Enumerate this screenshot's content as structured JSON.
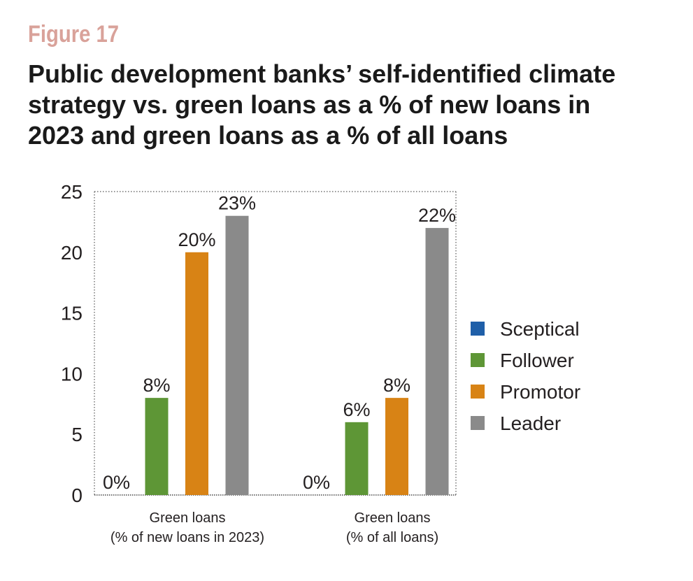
{
  "figure_label": "Figure 17",
  "title_lines": [
    "Public development banks’ self-identified climate",
    "strategy vs. green loans as a % of new loans in",
    "2023 and green loans as a % of all loans"
  ],
  "chart_data": {
    "type": "bar",
    "categories": [
      [
        "Green loans",
        "(% of new loans in 2023)"
      ],
      [
        "Green loans",
        "(% of all loans)"
      ]
    ],
    "series": [
      {
        "name": "Sceptical",
        "color": "#1f5fa8",
        "values": [
          0,
          0
        ],
        "labels": [
          "0%",
          "0%"
        ]
      },
      {
        "name": "Follower",
        "color": "#5e9636",
        "values": [
          8,
          6
        ],
        "labels": [
          "8%",
          "6%"
        ]
      },
      {
        "name": "Promotor",
        "color": "#d88315",
        "values": [
          20,
          8
        ],
        "labels": [
          "20%",
          "8%"
        ]
      },
      {
        "name": "Leader",
        "color": "#8a8a8a",
        "values": [
          23,
          22
        ],
        "labels": [
          "23%",
          "22%"
        ]
      }
    ],
    "ylim": [
      0,
      25
    ],
    "yticks": [
      "0",
      "5",
      "10",
      "15",
      "20",
      "25"
    ],
    "grid": false,
    "legend_position": "right"
  }
}
